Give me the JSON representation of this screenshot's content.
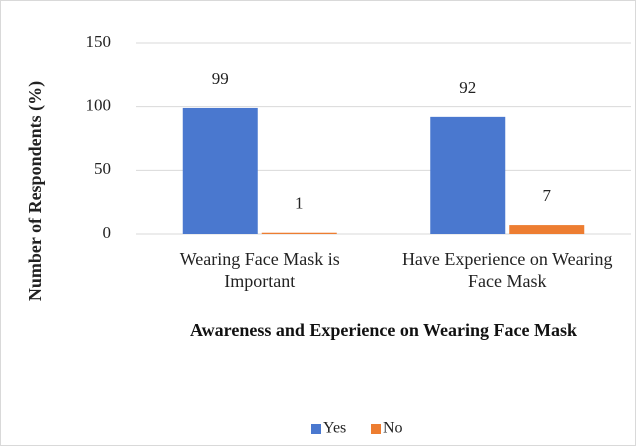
{
  "chart_data": {
    "type": "bar",
    "x_label": "Awareness and Experience on Wearing Face Mask",
    "y_label": "Number of Respondents (%)",
    "categories": [
      "Wearing Face Mask is Important",
      "Have Experience on Wearing Face Mask"
    ],
    "series": [
      {
        "name": "Yes",
        "color": "#4a78cf",
        "values": [
          99,
          92
        ]
      },
      {
        "name": "No",
        "color": "#ed7d31",
        "values": [
          1,
          7
        ]
      }
    ],
    "ylim": [
      0,
      150
    ],
    "yticks": [
      0,
      50,
      100,
      150
    ],
    "grid": true,
    "legend": "bottom"
  }
}
